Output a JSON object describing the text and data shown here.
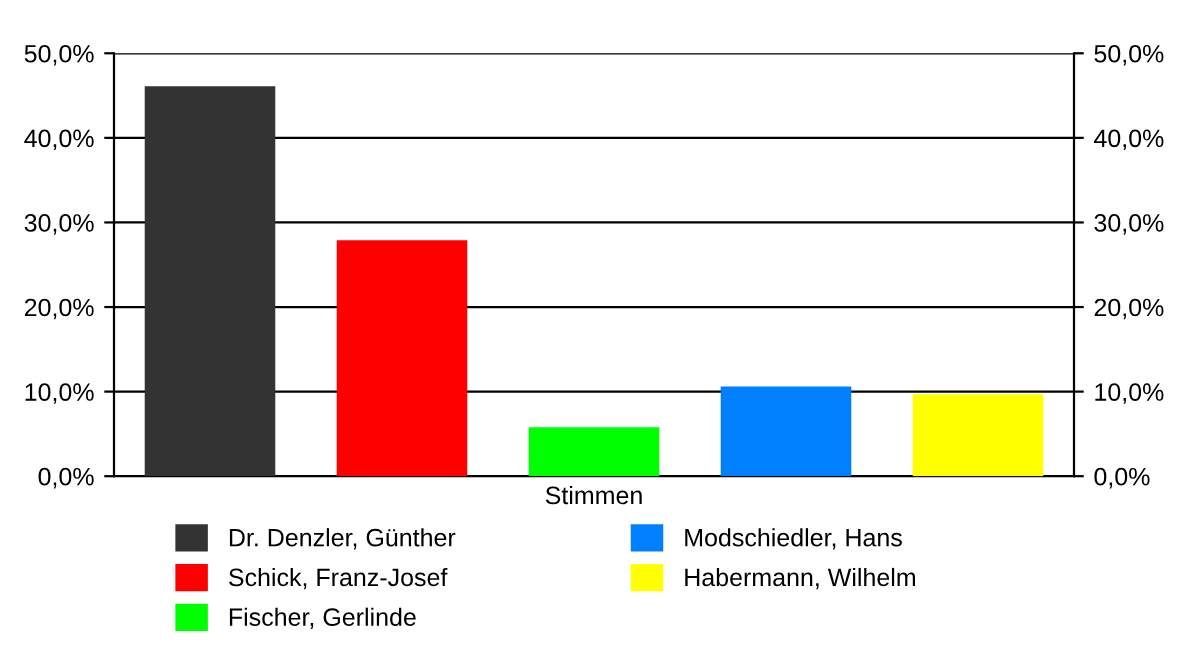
{
  "chart_data": {
    "type": "bar",
    "categories": [
      "Stimmen"
    ],
    "series": [
      {
        "name": "Dr. Denzler, Günther",
        "color": "#333333",
        "values": [
          46.1
        ]
      },
      {
        "name": "Schick, Franz-Josef",
        "color": "#ff0000",
        "values": [
          27.9
        ]
      },
      {
        "name": "Fischer, Gerlinde",
        "color": "#00ff00",
        "values": [
          5.8
        ]
      },
      {
        "name": "Modschiedler, Hans",
        "color": "#0080ff",
        "values": [
          10.6
        ]
      },
      {
        "name": "Habermann, Wilhelm",
        "color": "#ffff00",
        "values": [
          9.7
        ]
      }
    ],
    "ylim": [
      0,
      50
    ],
    "yticks": [
      {
        "value": 0,
        "label": "0,0%"
      },
      {
        "value": 10,
        "label": "10,0%"
      },
      {
        "value": 20,
        "label": "20,0%"
      },
      {
        "value": 30,
        "label": "30,0%"
      },
      {
        "value": 40,
        "label": "40,0%"
      },
      {
        "value": 50,
        "label": "50,0%"
      }
    ],
    "grid": "y",
    "legend": "bottom"
  }
}
